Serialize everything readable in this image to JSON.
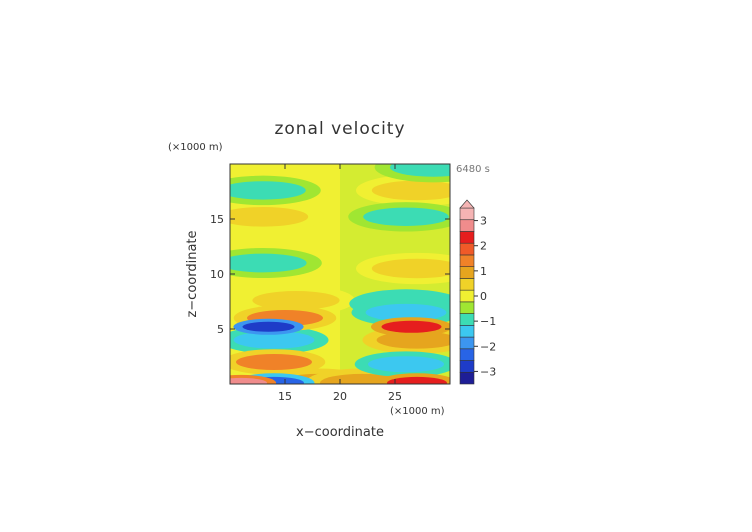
{
  "chart_data": {
    "type": "heatmap",
    "title": "zonal velocity",
    "xlabel": "x−coordinate",
    "ylabel": "z−coordinate",
    "x_unit": "(×1000 m)",
    "y_unit": "(×1000 m)",
    "time_label": "6480 s",
    "xlim": [
      10,
      30
    ],
    "ylim": [
      0,
      20
    ],
    "x_ticks": [
      "15",
      "20",
      "25"
    ],
    "y_ticks": [
      "5",
      "10",
      "15"
    ],
    "colorbar": {
      "levels": [
        -3.5,
        -3,
        -2.5,
        -2,
        -1.5,
        -1,
        -0.5,
        0,
        0.5,
        1,
        1.5,
        2,
        2.5,
        3,
        3.5
      ],
      "colors": [
        "#1e1e96",
        "#1e3cc8",
        "#2864e6",
        "#3c96f0",
        "#3cc8f0",
        "#3cdcb4",
        "#a0e632",
        "#f0f032",
        "#f0d228",
        "#e6a51e",
        "#f08228",
        "#f05a28",
        "#e61e1e",
        "#f08c8c",
        "#f5b4b4"
      ],
      "tick_labels": [
        "−3",
        "−2",
        "−1",
        "0",
        "1",
        "2",
        "3"
      ],
      "tick_values": [
        -3,
        -2,
        -1,
        0,
        1,
        2,
        3
      ],
      "extend": "max"
    },
    "field_samples": [
      {
        "x": 11,
        "z": 0.1,
        "u": 3
      },
      {
        "x": 14,
        "z": 0.1,
        "u": -2.5
      },
      {
        "x": 18,
        "z": 0.1,
        "u": 1
      },
      {
        "x": 22,
        "z": 0.1,
        "u": 1
      },
      {
        "x": 27,
        "z": 0.1,
        "u": 2.5
      },
      {
        "x": 14,
        "z": 2.0,
        "u": 1.5
      },
      {
        "x": 26,
        "z": 1.8,
        "u": -1.5
      },
      {
        "x": 14,
        "z": 4.0,
        "u": -1.2
      },
      {
        "x": 27,
        "z": 4.0,
        "u": 1.2
      },
      {
        "x": 13.5,
        "z": 5.2,
        "u": -3
      },
      {
        "x": 26.5,
        "z": 5.2,
        "u": 2.5
      },
      {
        "x": 15,
        "z": 6.0,
        "u": 1.5
      },
      {
        "x": 26,
        "z": 6.5,
        "u": -1.2
      },
      {
        "x": 16,
        "z": 7.6,
        "u": 0.8
      },
      {
        "x": 26,
        "z": 7.3,
        "u": -1.0
      },
      {
        "x": 13,
        "z": 11,
        "u": -0.8
      },
      {
        "x": 27,
        "z": 10.5,
        "u": 0.6
      },
      {
        "x": 13,
        "z": 15.2,
        "u": 0.6
      },
      {
        "x": 26,
        "z": 15.2,
        "u": -0.9
      },
      {
        "x": 13,
        "z": 17.6,
        "u": -0.9
      },
      {
        "x": 27,
        "z": 17.6,
        "u": 0.6
      },
      {
        "x": 28.5,
        "z": 19.7,
        "u": -0.8
      }
    ]
  }
}
